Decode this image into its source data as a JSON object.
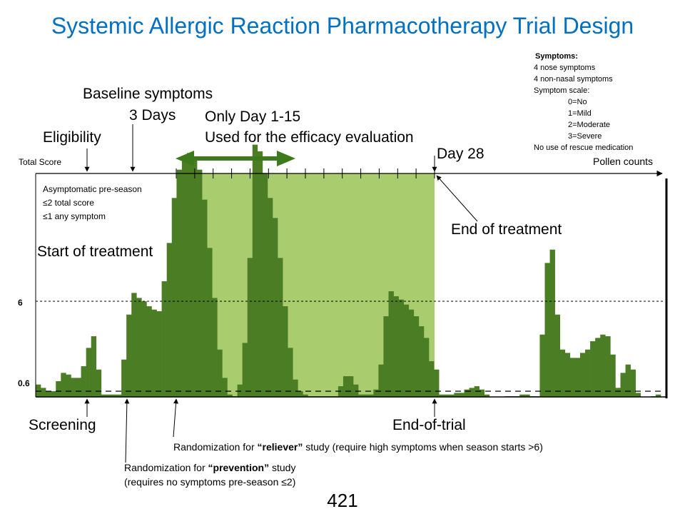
{
  "title": "Systemic Allergic Reaction Pharmacotherapy Trial Design",
  "labels": {
    "baseline_symptoms": "Baseline symptoms",
    "three_days": "3 Days",
    "only_day": "Only Day 1-15",
    "efficacy": "Used for the efficacy evaluation",
    "eligibility": "Eligibility",
    "day28": "Day 28",
    "total_score": "Total Score",
    "pollen_counts": "Pollen counts",
    "asym_line1": "Asymptomatic pre-season",
    "asym_line2": "≤2 total score",
    "asym_line3": "≤1 any symptom",
    "end_of_treatment": "End of treatment",
    "start_of_treatment": "Start of treatment",
    "y_tick_6": "6",
    "y_tick_06": "0.6",
    "screening": "Screening",
    "end_of_trial": "End-of-trial",
    "reliever_pre": "Randomization for ",
    "reliever_bold": "“reliever”",
    "reliever_post": " study (require high symptoms when season starts >6)",
    "prevention_pre": "Randomization for ",
    "prevention_bold": "“prevention”",
    "prevention_post": " study",
    "prevention_line2": "(requires no symptoms pre-season ≤2)",
    "page_number": "421"
  },
  "symptoms_box": {
    "heading": "Symptoms:",
    "lines": [
      "4 nose symptoms",
      "4 non-nasal symptoms",
      "Symptom scale:"
    ],
    "scale": [
      "0=No",
      "1=Mild",
      "2=Moderate",
      "3=Severe"
    ],
    "footer": "No use of rescue medication"
  },
  "colors": {
    "title": "#0070c0",
    "bar": "#4a7d24",
    "treatment_shade": "#a9cd6e",
    "arrow": "#3d7a1c"
  },
  "chart_data": {
    "type": "bar",
    "series": [
      {
        "values": [
          1.0,
          0.8,
          0.6,
          0.6,
          1.2,
          1.7,
          1.6,
          1.4,
          1.4,
          2.1,
          3.2,
          3.9,
          1.9,
          0.4,
          0.4,
          0.4,
          0.4,
          2.5,
          5.2,
          6.5,
          6.2,
          6.0,
          5.7,
          5.5,
          5.4,
          7.2,
          9.5,
          12.2,
          13.9,
          14.4,
          14.9,
          14.6,
          13.9,
          12.1,
          9.2,
          6.2,
          3.1,
          1.4,
          0.4,
          0.3,
          1.0,
          3.5,
          8.6,
          15.4,
          15.0,
          13.7,
          12.2,
          11.0,
          8.6,
          5.7,
          3.2,
          1.3,
          0.6,
          0.4,
          0.3,
          0.3,
          0.3,
          0.3,
          0.3,
          0.3,
          0.9,
          1.5,
          1.5,
          1.0,
          0.4,
          0.4,
          0.4,
          0.7,
          2.2,
          5.1,
          6.6,
          6.3,
          6.1,
          5.8,
          5.5,
          5.1,
          4.5,
          3.8,
          2.4,
          1.9,
          0.4,
          0.4,
          0.4,
          0.5,
          0.5,
          0.7,
          0.8,
          0.9,
          0.7,
          0.4,
          0.2,
          0.2,
          0.2,
          0.3,
          0.3,
          0.3,
          0.4,
          0.4,
          0.3,
          0.3,
          4.0,
          8.3,
          9.1,
          5.2,
          3.1,
          2.9,
          2.6,
          2.6,
          2.9,
          3.1,
          3.6,
          3.8,
          4.0,
          3.9,
          2.8,
          0.8,
          1.7,
          2.2,
          1.9,
          0.5,
          0.2,
          0.2,
          0.3,
          0.4
        ]
      }
    ],
    "reference_lines": [
      6,
      0.6
    ],
    "axis_labels": [
      "6",
      "0.6"
    ],
    "treatment_window_ticks": 14
  }
}
